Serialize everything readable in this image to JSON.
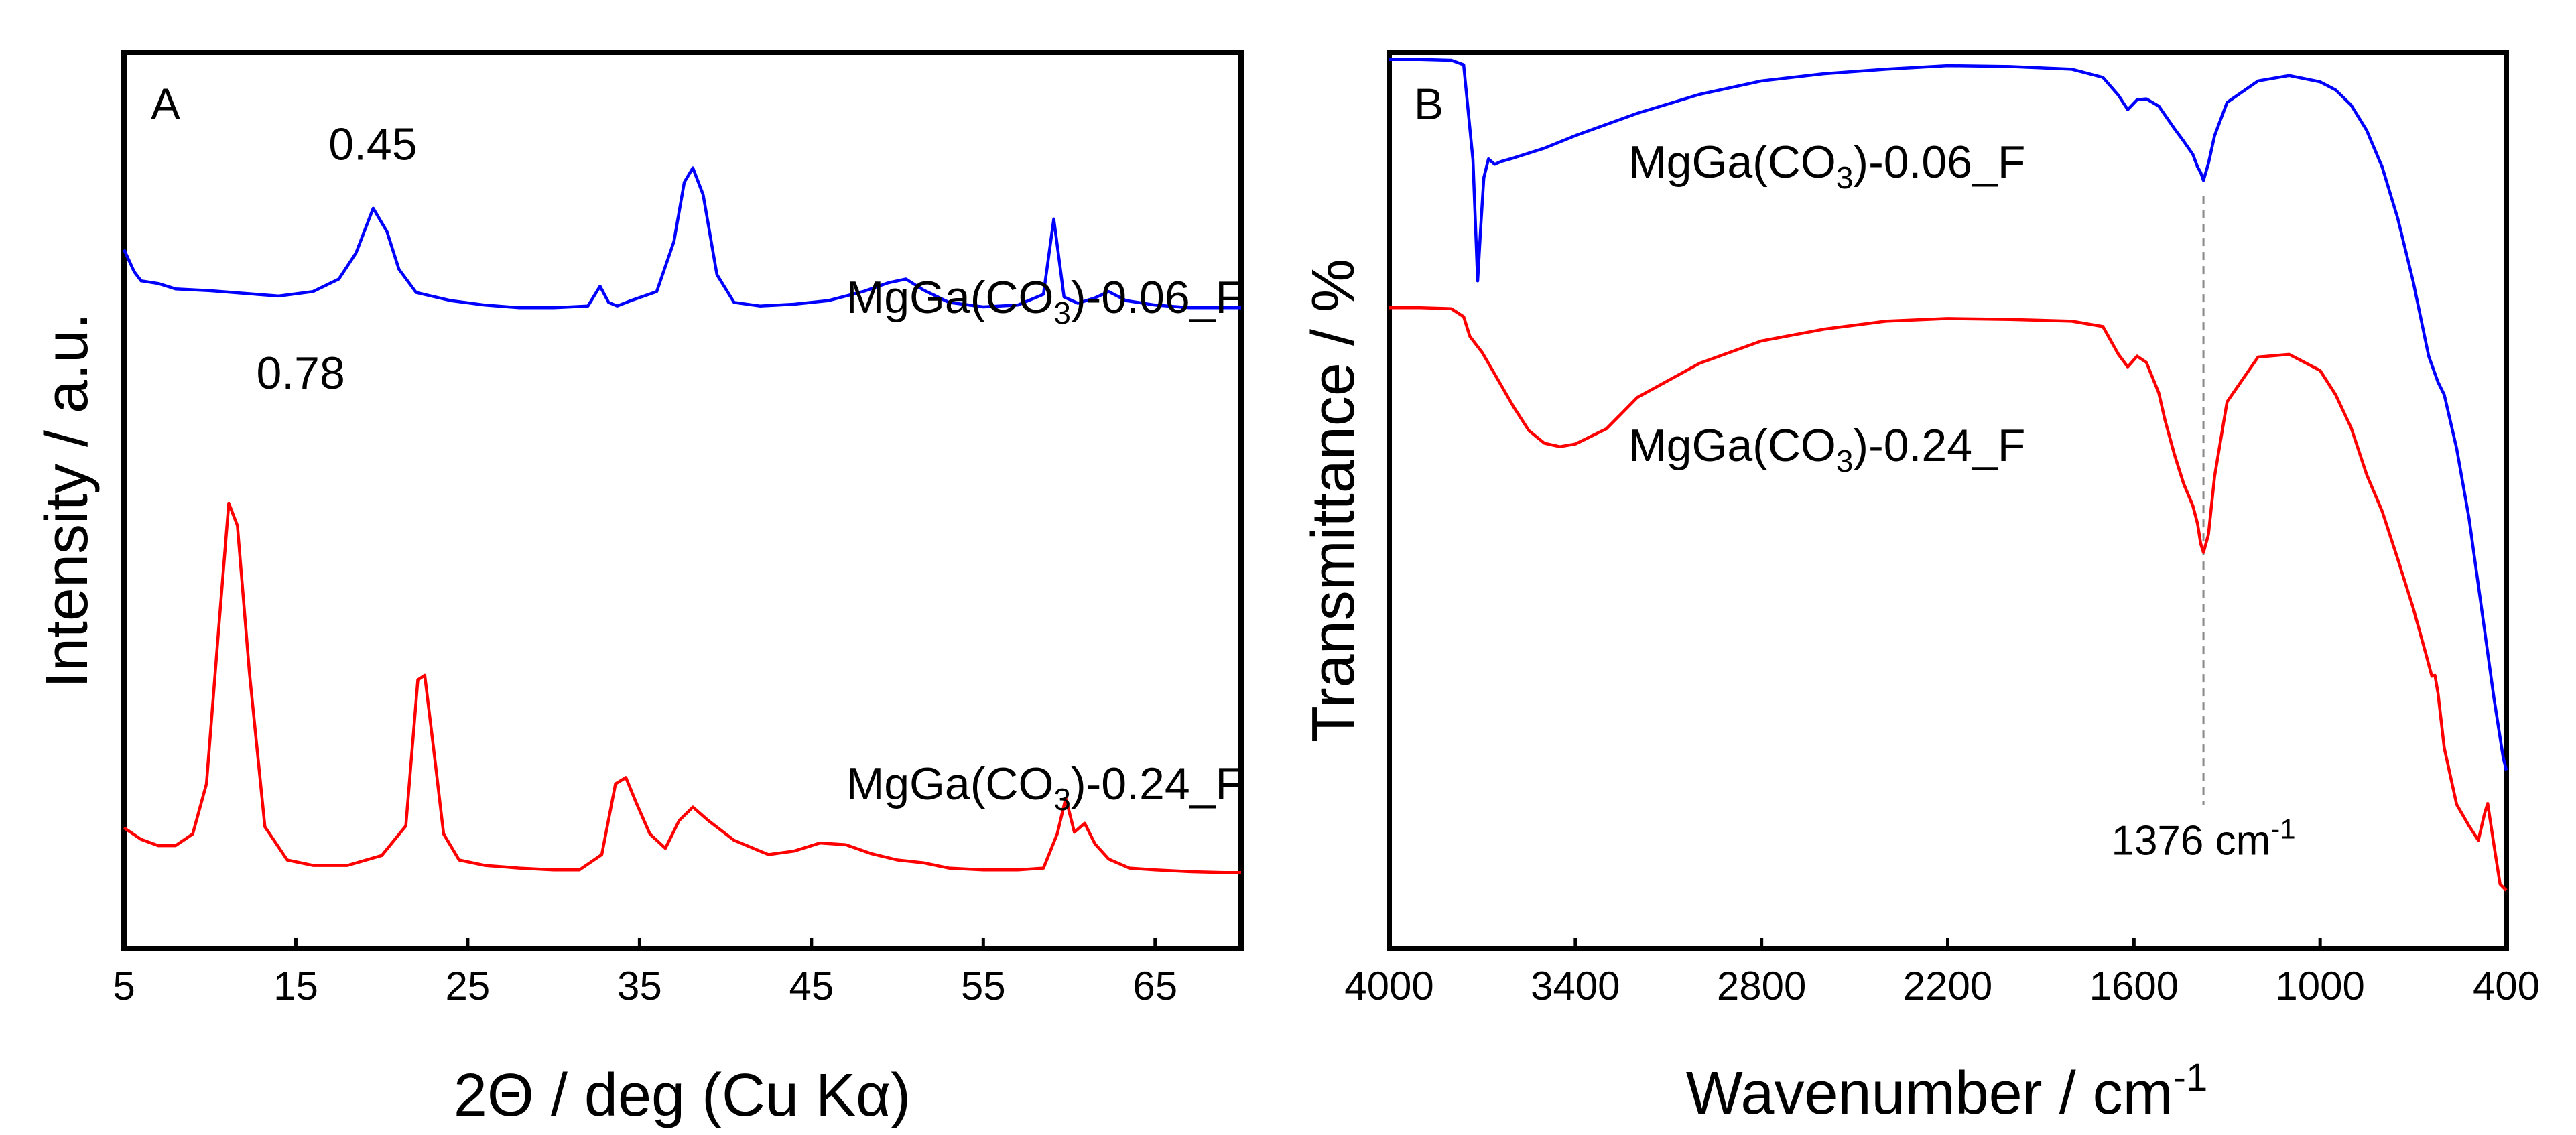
{
  "chart_data": [
    {
      "panel": "A",
      "type": "line",
      "xlabel": "2Θ / deg (Cu Kα)",
      "ylabel": "Intensity / a.u.",
      "xlim": [
        5,
        70
      ],
      "ylim": [
        0,
        100
      ],
      "xticks": [
        5,
        15,
        25,
        35,
        45,
        55,
        65
      ],
      "yticks_shown": false,
      "series": [
        {
          "name": "MgGa(CO3)-0.06_F",
          "label_parts": [
            "MgGa(CO",
            "3",
            ")-0.06_F"
          ],
          "color": "#0000ff",
          "x": [
            5,
            5.6,
            6,
            7,
            8,
            10,
            12,
            14,
            16,
            17.5,
            18.5,
            19.5,
            20.3,
            21,
            22,
            24,
            26,
            28,
            30,
            32,
            32.7,
            33.2,
            33.7,
            34.5,
            36,
            37,
            37.6,
            38.1,
            38.7,
            39.5,
            40.5,
            42,
            44,
            46,
            48,
            49.5,
            50.5,
            51.5,
            53,
            55,
            57,
            58.5,
            59.1,
            59.7,
            60.5,
            61.5,
            62.3,
            63.3,
            65,
            67,
            70
          ],
          "y": [
            78,
            75.5,
            74.5,
            74.2,
            73.6,
            73.4,
            73.1,
            72.8,
            73.3,
            74.7,
            77.6,
            82.6,
            80.0,
            75.8,
            73.2,
            72.3,
            71.8,
            71.5,
            71.5,
            71.7,
            73.9,
            72.1,
            71.7,
            72.3,
            73.3,
            78.9,
            85.5,
            87.1,
            84.1,
            75.2,
            72.1,
            71.7,
            71.9,
            72.3,
            73.3,
            74.3,
            74.7,
            73.5,
            72.1,
            71.6,
            71.8,
            73.0,
            81.4,
            72.7,
            72.0,
            72.6,
            73.3,
            72.3,
            71.8,
            71.5,
            71.5
          ]
        },
        {
          "name": "MgGa(CO3)-0.24_F",
          "label_parts": [
            "MgGa(CO",
            "3",
            ")-0.24_F"
          ],
          "color": "#ff0000",
          "x": [
            5,
            6,
            7,
            8,
            9,
            9.8,
            10.5,
            11.1,
            11.6,
            12.3,
            13.2,
            14.5,
            16,
            18,
            20,
            21.4,
            22.1,
            22.5,
            23.0,
            23.6,
            24.5,
            26,
            28,
            30,
            31.5,
            32.8,
            33.6,
            34.2,
            34.8,
            35.6,
            36.5,
            37.3,
            38.1,
            39,
            40.5,
            42.5,
            44,
            45.5,
            47,
            48.5,
            50,
            51.5,
            53,
            55,
            57,
            58.5,
            59.3,
            59.8,
            60.3,
            60.9,
            61.5,
            62.3,
            63.5,
            65,
            67,
            69,
            70
          ],
          "y": [
            13.5,
            12.2,
            11.5,
            11.5,
            12.8,
            18.4,
            35.5,
            49.7,
            47.2,
            30.8,
            13.6,
            9.9,
            9.3,
            9.3,
            10.4,
            13.7,
            30.0,
            30.5,
            22.6,
            12.8,
            9.9,
            9.3,
            9.0,
            8.8,
            8.8,
            10.5,
            18.4,
            19.1,
            16.3,
            12.8,
            11.2,
            14.3,
            15.8,
            14.3,
            12.1,
            10.5,
            10.9,
            11.8,
            11.6,
            10.6,
            9.9,
            9.6,
            9.0,
            8.8,
            8.8,
            9.0,
            12.8,
            16.8,
            13.0,
            14.0,
            11.7,
            10.0,
            9.0,
            8.8,
            8.6,
            8.5,
            8.5
          ]
        }
      ],
      "annotations": [
        {
          "text": "0.45",
          "x": 16.9,
          "y": 88
        },
        {
          "text": "0.78",
          "x": 12.7,
          "y": 62.5
        }
      ],
      "panel_label": "A",
      "grid": false
    },
    {
      "panel": "B",
      "type": "line",
      "xlabel_parts": [
        "Wavenumber / cm",
        "-1"
      ],
      "ylabel": "Transmittance / %",
      "xlim": [
        4000,
        400
      ],
      "ylim": [
        0,
        100
      ],
      "xticks": [
        4000,
        3400,
        2800,
        2200,
        1600,
        1000,
        400
      ],
      "yticks_shown": false,
      "series": [
        {
          "name": "MgGa(CO3)-0.06_F",
          "label_parts": [
            "MgGa(CO",
            "3",
            ")-0.06_F"
          ],
          "color": "#0000ff",
          "x": [
            4000,
            3900,
            3800,
            3760,
            3730,
            3715,
            3705,
            3695,
            3680,
            3660,
            3640,
            3600,
            3500,
            3400,
            3200,
            3000,
            2800,
            2600,
            2400,
            2200,
            2000,
            1800,
            1700,
            1650,
            1620,
            1590,
            1560,
            1520,
            1500,
            1470,
            1440,
            1410,
            1395,
            1385,
            1376,
            1360,
            1340,
            1300,
            1200,
            1100,
            1000,
            950,
            900,
            850,
            800,
            750,
            700,
            650,
            620,
            600,
            560,
            520,
            480,
            440,
            410,
            400
          ],
          "y": [
            99.2,
            99.2,
            99.1,
            98.6,
            88,
            74.5,
            80.5,
            86,
            88.1,
            87.5,
            87.8,
            88.2,
            89.3,
            90.7,
            93.2,
            95.3,
            96.8,
            97.6,
            98.1,
            98.5,
            98.4,
            98.1,
            97.2,
            95.2,
            93.6,
            94.7,
            94.8,
            94.0,
            93.0,
            91.5,
            90.1,
            88.6,
            87.2,
            86.6,
            85.7,
            87.6,
            90.7,
            94.4,
            96.8,
            97.4,
            96.7,
            95.8,
            94.1,
            91.3,
            87.2,
            81.5,
            74.4,
            66.1,
            63.2,
            61.8,
            55.8,
            48.0,
            38.0,
            28.0,
            21.3,
            19.9
          ]
        },
        {
          "name": "MgGa(CO3)-0.24_F",
          "label_parts": [
            "MgGa(CO",
            "3",
            ")-0.24_F"
          ],
          "color": "#ff0000",
          "x": [
            4000,
            3900,
            3800,
            3760,
            3740,
            3700,
            3650,
            3600,
            3550,
            3500,
            3450,
            3400,
            3300,
            3200,
            3000,
            2800,
            2600,
            2400,
            2200,
            2000,
            1800,
            1700,
            1650,
            1620,
            1590,
            1560,
            1520,
            1500,
            1470,
            1440,
            1410,
            1395,
            1385,
            1376,
            1360,
            1340,
            1300,
            1200,
            1100,
            1000,
            950,
            900,
            850,
            800,
            750,
            700,
            660,
            640,
            630,
            620,
            600,
            560,
            520,
            490,
            470,
            460,
            440,
            420,
            400
          ],
          "y": [
            71.5,
            71.5,
            71.4,
            70.5,
            68.3,
            66.5,
            63.5,
            60.5,
            57.8,
            56.4,
            56.0,
            56.3,
            58.0,
            61.5,
            65.3,
            67.8,
            69.1,
            70.0,
            70.3,
            70.2,
            70.0,
            69.4,
            66.3,
            64.9,
            66.1,
            65.4,
            62.0,
            59.0,
            55.2,
            51.9,
            49.4,
            47.4,
            45.2,
            44.2,
            46.2,
            52.7,
            61.0,
            66.0,
            66.3,
            64.5,
            61.8,
            58.1,
            52.9,
            48.8,
            43.5,
            38.0,
            33.0,
            30.4,
            30.5,
            28.5,
            22.4,
            16.1,
            13.7,
            12.1,
            15.1,
            16.2,
            11.6,
            7.2,
            6.5
          ]
        }
      ],
      "annotations": [
        {
          "text_parts": [
            "1376 cm",
            "-1"
          ],
          "x": 1376
        }
      ],
      "reference_line": {
        "x": 1376,
        "style": "dashed",
        "color": "#888888"
      },
      "panel_label": "B",
      "grid": false
    }
  ]
}
